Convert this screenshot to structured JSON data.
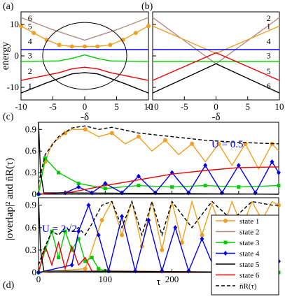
{
  "chart_data": [
    {
      "type": "line",
      "panel": "(a)",
      "ylabel": "energy",
      "xlabel": "-δ",
      "xlim": [
        -10,
        10
      ],
      "ylim": [
        -14,
        14
      ],
      "xticks": [
        -10,
        -5,
        0,
        5,
        10
      ],
      "yticks": [
        -10,
        0,
        10
      ],
      "state_labels": [
        "6",
        "5",
        "4",
        "3",
        "2",
        "1"
      ],
      "series": [
        {
          "name": "6",
          "color": "#b58a8a",
          "x": [
            -10,
            -5,
            0,
            5,
            10
          ],
          "y": [
            12.2,
            8.3,
            5.0,
            8.3,
            12.2
          ]
        },
        {
          "name": "5",
          "color": "#f0a020",
          "x": [
            -10,
            -8,
            -6,
            -4,
            -2,
            0,
            2,
            4,
            6,
            8,
            10
          ],
          "y": [
            9.5,
            7.3,
            5.1,
            3.5,
            3.0,
            3.0,
            3.0,
            3.5,
            5.1,
            7.3,
            9.5
          ]
        },
        {
          "name": "4",
          "color": "#0000ee",
          "x": [
            -10,
            10
          ],
          "y": [
            2,
            2
          ]
        },
        {
          "name": "3",
          "color": "#00cc00",
          "x": [
            -10,
            -4,
            -2,
            0,
            2,
            4,
            10
          ],
          "y": [
            -1.8,
            -1.6,
            -0.8,
            0.3,
            -0.8,
            -1.6,
            -1.8
          ]
        },
        {
          "name": "2",
          "color": "#ee0000",
          "x": [
            -10,
            -4,
            -2,
            0,
            2,
            4,
            10
          ],
          "y": [
            -7.8,
            -5.3,
            -4.1,
            -3.6,
            -4.1,
            -5.3,
            -7.8
          ]
        },
        {
          "name": "1",
          "color": "#000000",
          "x": [
            -10,
            -6,
            -2,
            0,
            2,
            6,
            10
          ],
          "y": [
            -11.8,
            -8.6,
            -5.7,
            -5.3,
            -5.7,
            -8.6,
            -11.8
          ]
        }
      ]
    },
    {
      "type": "line",
      "panel": "(b)",
      "xlabel": "-δ",
      "xlim": [
        -10,
        10
      ],
      "ylim": [
        -14,
        14
      ],
      "xticks": [
        -10,
        -5,
        0,
        5,
        10
      ],
      "state_labels": [
        "2",
        "1",
        "4",
        "3",
        "5",
        "6"
      ],
      "series": [
        {
          "name": "2",
          "color": "#b58a8a",
          "x": [
            -10,
            0,
            10
          ],
          "y": [
            12.2,
            -2.5,
            12.2
          ]
        },
        {
          "name": "1",
          "color": "#f0a020",
          "x": [
            -10,
            0,
            10
          ],
          "y": [
            9.5,
            0.8,
            9.5
          ]
        },
        {
          "name": "4",
          "color": "#0000ee",
          "x": [
            -10,
            10
          ],
          "y": [
            2,
            2
          ]
        },
        {
          "name": "3",
          "color": "#00cc00",
          "x": [
            -10,
            10
          ],
          "y": [
            -1.8,
            -1.8
          ]
        },
        {
          "name": "5",
          "color": "#ee0000",
          "x": [
            -10,
            0,
            10
          ],
          "y": [
            -7.8,
            1.0,
            -7.8
          ]
        },
        {
          "name": "6",
          "color": "#000000",
          "x": [
            -10,
            0,
            10
          ],
          "y": [
            -11.8,
            -2.5,
            -11.8
          ]
        }
      ]
    },
    {
      "type": "line",
      "panel": "(c)",
      "ylabel": "|overlap|² and n̄R(τ)",
      "annotation": "U = 0.5",
      "xlim": [
        0,
        360
      ],
      "ylim": [
        0,
        1.0
      ],
      "yticks": [
        0,
        0.3,
        0.6,
        0.9
      ],
      "series": [
        {
          "name": "state 1",
          "color": "#f0a020",
          "x": [
            0,
            10,
            20,
            40,
            50,
            70,
            90,
            110,
            130,
            150,
            170,
            190,
            210,
            230,
            250,
            270,
            290,
            310,
            330,
            350,
            360
          ],
          "y": [
            0.05,
            0.45,
            0.7,
            0.85,
            0.9,
            0.9,
            0.8,
            0.85,
            0.7,
            0.8,
            0.6,
            0.75,
            0.55,
            0.7,
            0.45,
            0.7,
            0.4,
            0.7,
            0.35,
            0.7,
            0.6
          ]
        },
        {
          "name": "state 3",
          "color": "#00cc00",
          "x": [
            0,
            10,
            30,
            60,
            100,
            150,
            200,
            250,
            300,
            360
          ],
          "y": [
            0.0,
            0.5,
            0.3,
            0.15,
            0.08,
            0.12,
            0.1,
            0.12,
            0.1,
            0.12
          ]
        },
        {
          "name": "state 4",
          "color": "#0000ee",
          "x": [
            0,
            40,
            60,
            80,
            100,
            125,
            150,
            175,
            200,
            225,
            250,
            275,
            300,
            325,
            350,
            360
          ],
          "y": [
            0.0,
            0.02,
            0.1,
            0.02,
            0.15,
            0.02,
            0.25,
            0.02,
            0.3,
            0.02,
            0.4,
            0.02,
            0.4,
            0.02,
            0.45,
            0.3
          ]
        },
        {
          "name": "state 6",
          "color": "#ee0000",
          "x": [
            0,
            50,
            100,
            150,
            200,
            250,
            300,
            360
          ],
          "y": [
            0.0,
            0.03,
            0.12,
            0.2,
            0.28,
            0.33,
            0.37,
            0.38
          ]
        },
        {
          "name": "state 5",
          "color": "#000000",
          "x": [
            0,
            3,
            8,
            360
          ],
          "y": [
            1.0,
            0.3,
            0.02,
            0.0
          ]
        },
        {
          "name": "n̄R(τ)",
          "color": "#000000",
          "dashed": true,
          "x": [
            0,
            10,
            30,
            50,
            70,
            90,
            110,
            150,
            200,
            250,
            300,
            360
          ],
          "y": [
            0.15,
            0.55,
            0.8,
            0.92,
            0.95,
            0.9,
            0.93,
            0.85,
            0.8,
            0.75,
            0.72,
            0.7
          ]
        }
      ]
    },
    {
      "type": "line",
      "panel": "(d)",
      "xlabel": "τ",
      "annotation": "U = 2√2",
      "xlim": [
        0,
        360
      ],
      "ylim": [
        0,
        1.0
      ],
      "xticks": [
        0,
        100,
        200,
        300
      ],
      "yticks": [
        0,
        0.3,
        0.6,
        0.9
      ],
      "legend_entries": [
        "state 1",
        "state 2",
        "state 3",
        "state 4",
        "state 5",
        "state 6",
        "n̄R(τ)"
      ],
      "legend_position": "right",
      "series": [
        {
          "name": "state 1",
          "color": "#f0a020",
          "x": [
            0,
            70,
            80,
            95,
            110,
            125,
            140,
            155,
            170,
            185,
            200,
            215,
            230,
            245,
            260,
            275,
            290,
            305,
            320,
            335,
            350,
            360
          ],
          "y": [
            0.0,
            0.05,
            0.3,
            0.7,
            0.95,
            0.5,
            0.95,
            0.35,
            0.95,
            0.3,
            0.95,
            0.4,
            0.95,
            0.5,
            0.92,
            0.55,
            0.95,
            0.6,
            0.95,
            0.7,
            0.95,
            0.9
          ]
        },
        {
          "name": "state 3",
          "color": "#00cc00",
          "x": [
            0,
            10,
            20,
            30,
            40,
            50,
            60,
            70,
            80,
            90,
            100,
            360
          ],
          "y": [
            0.0,
            0.3,
            0.55,
            0.2,
            0.55,
            0.3,
            0.45,
            0.15,
            0.2,
            0.05,
            0.02,
            0.0
          ]
        },
        {
          "name": "state 4",
          "color": "#0000ee",
          "x": [
            0,
            50,
            60,
            75,
            90,
            105,
            125,
            145,
            165,
            185,
            205,
            225,
            245,
            265,
            285,
            305,
            325,
            345,
            360
          ],
          "y": [
            0.0,
            0.1,
            0.55,
            0.9,
            0.5,
            0.02,
            0.75,
            0.02,
            0.7,
            0.02,
            0.6,
            0.02,
            0.45,
            0.02,
            0.3,
            0.02,
            0.2,
            0.02,
            0.15
          ]
        },
        {
          "name": "state 6",
          "color": "#ee0000",
          "x": [
            0,
            10,
            20,
            30,
            40,
            50,
            60,
            70,
            80,
            360
          ],
          "y": [
            0.0,
            0.35,
            0.1,
            0.4,
            0.05,
            0.35,
            0.1,
            0.2,
            0.02,
            0.0
          ]
        },
        {
          "name": "state 5",
          "color": "#000000",
          "x": [
            0,
            3,
            8,
            360
          ],
          "y": [
            1.0,
            0.3,
            0.02,
            0.0
          ]
        },
        {
          "name": "n̄R(τ)",
          "color": "#000000",
          "dashed": true,
          "x": [
            0,
            10,
            20,
            30,
            40,
            50,
            60,
            70,
            80,
            95,
            110,
            125,
            140,
            155,
            170,
            185,
            200,
            230,
            260,
            290,
            320,
            350,
            360
          ],
          "y": [
            0.1,
            0.35,
            0.55,
            0.5,
            0.6,
            0.55,
            0.6,
            0.5,
            0.65,
            0.9,
            0.95,
            0.6,
            0.95,
            0.5,
            0.95,
            0.5,
            0.95,
            0.6,
            0.95,
            0.7,
            0.95,
            0.9,
            0.9
          ]
        }
      ]
    }
  ]
}
